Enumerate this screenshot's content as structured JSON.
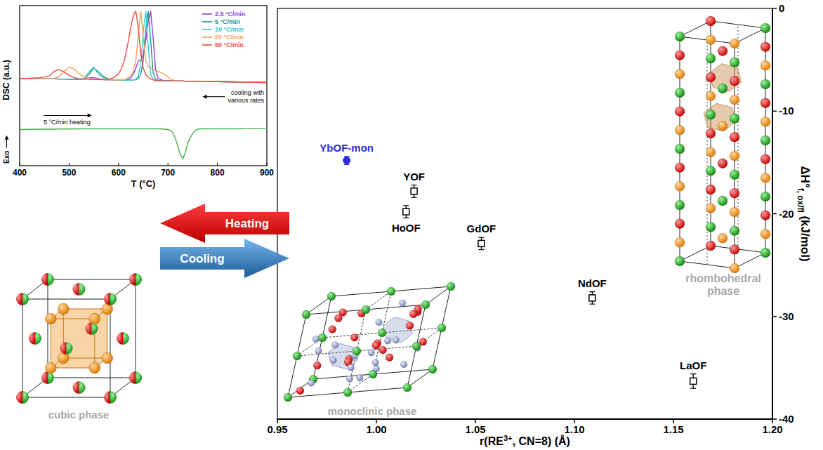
{
  "chart_data": [
    {
      "type": "scatter",
      "xlabel": [
        {
          "text": "r(RE"
        },
        {
          "superscript": "3+"
        },
        {
          "text": ", CN=8) (Å)"
        }
      ],
      "ylabel": [
        {
          "text": "ΔH°"
        },
        {
          "subscript": "f, ox/fl"
        },
        {
          "text": " (kJ/mol)"
        }
      ],
      "xlim": [
        0.95,
        1.2
      ],
      "xticks": [
        0.95,
        {
          "value": 1,
          "label": "1.00"
        },
        1.05,
        {
          "value": 1.1,
          "label": "1.10"
        },
        1.15,
        {
          "value": 1.2,
          "label": "1.20"
        }
      ],
      "ylim": [
        -40,
        0
      ],
      "yticks": [
        -40,
        -30,
        -20,
        -10,
        0
      ],
      "series": [
        {
          "color": "#2b2bd8",
          "marker": "circle",
          "x": [
            0.985
          ],
          "values": [
            -14.8
          ],
          "errors": [
            0.4
          ],
          "labels": [
            "YbOF-mon"
          ]
        },
        {
          "color": "#000000",
          "marker": "square",
          "x": [
            1.019,
            1.015,
            1.053,
            1.109,
            1.16
          ],
          "values": [
            -17.8,
            -19.8,
            -22.9,
            -28.2,
            -36.3
          ],
          "errors": [
            0.6,
            0.6,
            0.6,
            0.6,
            0.7
          ],
          "labels": [
            "YOF",
            "HoOF",
            "GdOF",
            "NdOF",
            "LaOF"
          ]
        }
      ]
    },
    {
      "type": "line",
      "xlabel": "T (°C)",
      "ylabel": "DSC (a.u.)",
      "xlim": [
        400,
        900
      ],
      "xticks": [
        400,
        500,
        600,
        700,
        800,
        900
      ],
      "ylim": [
        0,
        100
      ],
      "tick_labels": "x",
      "legend": "upper right",
      "x": [
        400,
        420,
        440,
        460,
        470,
        480,
        490,
        500,
        510,
        520,
        530,
        540,
        550,
        560,
        570,
        580,
        590,
        600,
        605,
        610,
        615,
        620,
        625,
        630,
        635,
        640,
        645,
        650,
        655,
        660,
        665,
        670,
        675,
        680,
        690,
        700,
        705,
        710,
        715,
        720,
        725,
        730,
        735,
        740,
        745,
        750,
        755,
        760,
        770,
        780,
        800,
        820,
        840,
        860,
        880,
        900
      ],
      "series": [
        {
          "name": "2.5 °C/min",
          "color": "#8b3fd9",
          "values": [
            54.5,
            54.4,
            54.3,
            54.2,
            54.2,
            54.1,
            54.1,
            54.0,
            54.0,
            53.9,
            54.2,
            54.8,
            55.0,
            54.3,
            53.7,
            53.6,
            53.6,
            53.5,
            53.5,
            53.5,
            53.6,
            54.0,
            55.0,
            57.0,
            61.0,
            65.5,
            66.0,
            69.0,
            78.0,
            90.0,
            96.5,
            80.0,
            60.0,
            54.5,
            53.2,
            53.0,
            53.0,
            53.0,
            52.9,
            52.9,
            52.9,
            52.9,
            52.8,
            52.8,
            52.8,
            52.8,
            52.7,
            52.7,
            52.7,
            52.6,
            52.5,
            52.4,
            52.3,
            52.2,
            52.1,
            52.0
          ]
        },
        {
          "name": "5 °C/min",
          "color": "#1a8f8f",
          "values": [
            54.5,
            54.4,
            54.3,
            54.2,
            54.2,
            54.1,
            54.1,
            54.0,
            54.0,
            53.9,
            54.3,
            57.0,
            61.0,
            58.5,
            55.5,
            54.2,
            53.7,
            53.5,
            53.5,
            53.5,
            53.4,
            53.4,
            53.4,
            53.5,
            53.8,
            54.5,
            57.0,
            66.0,
            85.0,
            96.5,
            78.0,
            58.0,
            54.0,
            53.3,
            53.0,
            53.0,
            53.0,
            53.0,
            52.9,
            52.9,
            52.9,
            52.9,
            52.8,
            52.8,
            52.8,
            52.8,
            52.7,
            52.7,
            52.7,
            52.6,
            52.5,
            52.4,
            52.3,
            52.2,
            52.1,
            52.0
          ]
        },
        {
          "name": "10 °C/min",
          "color": "#35c9d0",
          "values": [
            54.5,
            54.4,
            54.3,
            54.2,
            54.2,
            54.1,
            54.1,
            54.0,
            54.0,
            53.9,
            54.5,
            58.5,
            61.5,
            57.0,
            54.8,
            54.0,
            53.6,
            53.5,
            53.5,
            53.5,
            53.4,
            53.4,
            53.4,
            53.4,
            54.0,
            56.0,
            64.0,
            84.0,
            96.5,
            75.0,
            57.0,
            53.8,
            53.1,
            53.1,
            53.0,
            53.0,
            53.0,
            53.0,
            52.9,
            52.9,
            52.9,
            52.9,
            52.8,
            52.8,
            52.8,
            52.8,
            52.7,
            52.7,
            52.7,
            52.6,
            52.5,
            52.4,
            52.3,
            52.2,
            52.1,
            52.0
          ]
        },
        {
          "name": "20 °C/min",
          "color": "#f5a25d",
          "values": [
            54.5,
            54.4,
            54.3,
            54.2,
            54.6,
            55.5,
            59.0,
            61.5,
            60.5,
            57.5,
            55.5,
            54.5,
            54.0,
            53.7,
            53.7,
            53.6,
            53.6,
            53.5,
            53.6,
            53.7,
            54.0,
            55.0,
            56.5,
            59.0,
            66.0,
            82.0,
            96.5,
            80.0,
            66.0,
            62.0,
            61.0,
            60.3,
            59.6,
            59.0,
            57.5,
            55.5,
            54.3,
            53.5,
            53.0,
            52.9,
            52.9,
            52.9,
            52.8,
            52.8,
            52.8,
            52.8,
            52.7,
            52.7,
            52.7,
            52.6,
            52.5,
            52.4,
            52.3,
            52.2,
            52.1,
            52.0
          ]
        },
        {
          "name": "50 °C/min",
          "color": "#ee4b43",
          "values": [
            54.5,
            54.6,
            55.0,
            56.0,
            59.0,
            60.0,
            58.5,
            56.5,
            55.0,
            54.3,
            54.0,
            53.9,
            53.8,
            53.8,
            53.8,
            54.0,
            55.0,
            57.5,
            60.0,
            64.0,
            70.0,
            78.0,
            87.0,
            94.0,
            96.5,
            86.0,
            70.0,
            61.0,
            57.0,
            55.2,
            54.2,
            53.6,
            53.2,
            53.1,
            53.0,
            53.0,
            53.0,
            53.0,
            52.9,
            52.9,
            52.9,
            52.9,
            52.8,
            52.8,
            52.8,
            52.8,
            52.7,
            52.7,
            52.7,
            52.6,
            52.5,
            52.4,
            52.3,
            52.2,
            52.1,
            52.0
          ]
        },
        {
          "color": "#46b04a",
          "values": [
            22.6,
            22.7,
            22.8,
            22.8,
            22.8,
            22.9,
            22.9,
            22.9,
            22.9,
            23.0,
            23.0,
            23.0,
            23.0,
            23.0,
            23.0,
            23.0,
            23.0,
            23.0,
            23.0,
            23.0,
            23.0,
            23.0,
            23.0,
            23.0,
            23.0,
            23.0,
            23.0,
            23.0,
            23.0,
            23.0,
            23.0,
            23.0,
            23.0,
            23.0,
            22.9,
            22.6,
            22.0,
            20.5,
            17.0,
            12.0,
            7.0,
            4.4,
            8.0,
            14.0,
            17.5,
            20.0,
            22.0,
            22.8,
            23.0,
            23.0,
            23.0,
            23.0,
            23.0,
            23.1,
            23.1,
            23.1
          ]
        }
      ],
      "annotations": [
        "cooling with various rates",
        "5 °C/min heating",
        "Exo"
      ]
    }
  ],
  "diagram": {
    "transitions": [
      {
        "label": "Heating"
      },
      {
        "label": "Cooling"
      }
    ],
    "phases": [
      {
        "label": "cubic phase"
      },
      {
        "label": "monoclinic phase"
      },
      {
        "label": "rhombohedral phase"
      }
    ]
  }
}
